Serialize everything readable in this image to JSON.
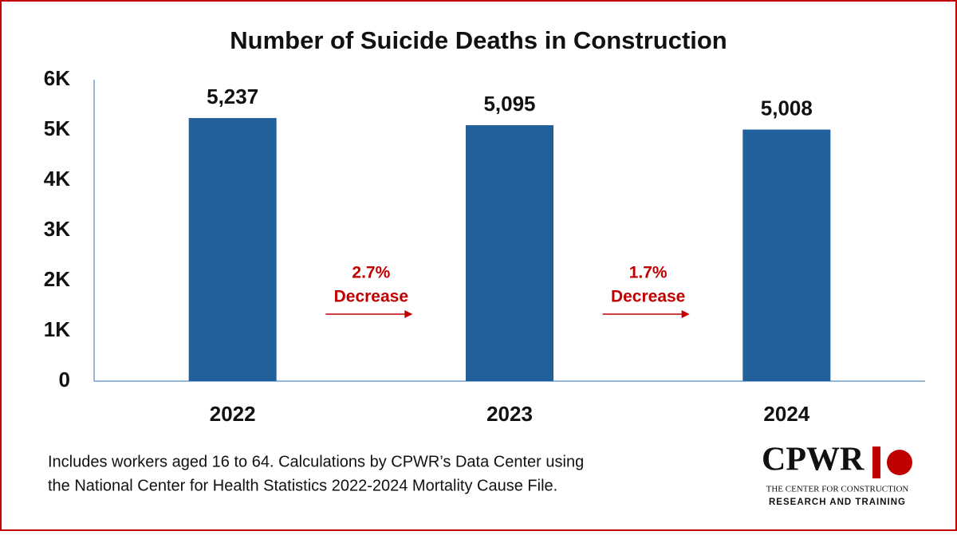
{
  "chart_data": {
    "type": "bar",
    "title": "Number of Suicide Deaths in Construction",
    "categories": [
      "2022",
      "2023",
      "2024"
    ],
    "values": [
      5237,
      5095,
      5008
    ],
    "value_labels": [
      "5,237",
      "5,095",
      "5,008"
    ],
    "color": "#21609b",
    "ylim": [
      0,
      6000
    ],
    "yticks": [
      0,
      {
        "value": 1000,
        "label": "1K"
      },
      {
        "value": 2000,
        "label": "2K"
      },
      {
        "value": 3000,
        "label": "3K"
      },
      {
        "value": 4000,
        "label": "4K"
      },
      {
        "value": 5000,
        "label": "5K"
      },
      {
        "value": 6000,
        "label": "6K"
      }
    ],
    "grid": false,
    "annotations": [
      {
        "lines": [
          "2.7%",
          "Decrease"
        ]
      },
      {
        "lines": [
          "1.7%",
          "Decrease"
        ]
      }
    ],
    "annotation_color": "#c00000",
    "footnote": [
      "Includes workers aged 16 to 64. Calculations by CPWR’s Data Center using",
      "the National Center for Health Statistics 2022-2024 Mortality Cause File."
    ],
    "logo": {
      "name": "CPWR",
      "line1": "THE CENTER FOR CONSTRUCTION",
      "line2": "RESEARCH AND TRAINING"
    }
  }
}
